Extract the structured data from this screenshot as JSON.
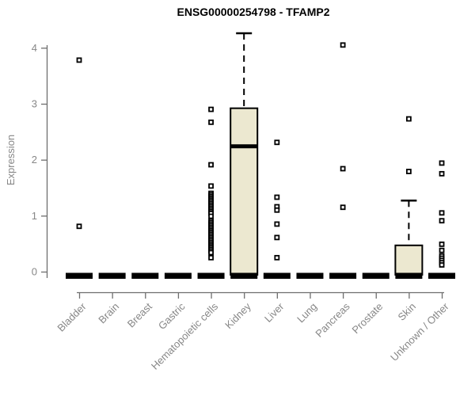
{
  "chart_data": {
    "type": "box",
    "title": "ENSG00000254798 - TFAMP2",
    "ylabel": "Expression",
    "xlabel": "",
    "ylim": [
      0,
      4.3
    ],
    "yticks": [
      0,
      1,
      2,
      3,
      4
    ],
    "grid": false,
    "legend": null,
    "categories": [
      "Bladder",
      "Brain",
      "Breast",
      "Gastric",
      "Hematopoietic cells",
      "Kidney",
      "Liver",
      "Lung",
      "Pancreas",
      "Prostate",
      "Skin",
      "Unknown / Other"
    ],
    "boxes": [
      {
        "category": "Bladder",
        "q1": 0,
        "median": 0,
        "q3": 0,
        "whisker_low": 0,
        "whisker_high": 0,
        "outliers": [
          3.78,
          0.81
        ]
      },
      {
        "category": "Brain",
        "q1": 0,
        "median": 0,
        "q3": 0,
        "whisker_low": 0,
        "whisker_high": 0,
        "outliers": []
      },
      {
        "category": "Breast",
        "q1": 0,
        "median": 0,
        "q3": 0,
        "whisker_low": 0,
        "whisker_high": 0,
        "outliers": []
      },
      {
        "category": "Gastric",
        "q1": 0,
        "median": 0,
        "q3": 0,
        "whisker_low": 0,
        "whisker_high": 0,
        "outliers": []
      },
      {
        "category": "Hematopoietic cells",
        "q1": 0,
        "median": 0,
        "q3": 0,
        "whisker_low": 0,
        "whisker_high": 0,
        "outliers": [
          2.9,
          2.67,
          1.91,
          1.53,
          1.4,
          1.37,
          1.34,
          1.31,
          1.28,
          1.25,
          1.22,
          1.19,
          1.16,
          1.13,
          1.1,
          1.07,
          1.04,
          0.99,
          0.91,
          0.88,
          0.85,
          0.82,
          0.79,
          0.76,
          0.73,
          0.7,
          0.67,
          0.64,
          0.61,
          0.58,
          0.55,
          0.52,
          0.49,
          0.46,
          0.43,
          0.4,
          0.37,
          0.34,
          0.25
        ]
      },
      {
        "category": "Kidney",
        "q1": 0,
        "median": 2.24,
        "q3": 2.92,
        "whisker_low": 0,
        "whisker_high": 4.26,
        "outliers": []
      },
      {
        "category": "Liver",
        "q1": 0,
        "median": 0,
        "q3": 0,
        "whisker_low": 0,
        "whisker_high": 0,
        "outliers": [
          2.31,
          1.33,
          1.16,
          1.1,
          0.85,
          0.61,
          0.25
        ]
      },
      {
        "category": "Lung",
        "q1": 0,
        "median": 0,
        "q3": 0,
        "whisker_low": 0,
        "whisker_high": 0,
        "outliers": []
      },
      {
        "category": "Pancreas",
        "q1": 0,
        "median": 0,
        "q3": 0,
        "whisker_low": 0,
        "whisker_high": 0,
        "outliers": [
          4.05,
          1.84,
          1.15
        ]
      },
      {
        "category": "Prostate",
        "q1": 0,
        "median": 0,
        "q3": 0,
        "whisker_low": 0,
        "whisker_high": 0,
        "outliers": []
      },
      {
        "category": "Skin",
        "q1": 0,
        "median": 0,
        "q3": 0.47,
        "whisker_low": 0,
        "whisker_high": 1.27,
        "outliers": [
          2.73,
          1.79
        ]
      },
      {
        "category": "Unknown / Other",
        "q1": 0,
        "median": 0,
        "q3": 0,
        "whisker_low": 0,
        "whisker_high": 0,
        "outliers": [
          1.94,
          1.75,
          1.05,
          0.91,
          0.49,
          0.38,
          0.28,
          0.24,
          0.2,
          0.16,
          0.12
        ]
      }
    ],
    "colors": {
      "box_fill": "#ece8d0",
      "box_border": "#000000",
      "median": "#000000",
      "outlier": "#000000",
      "axis_line": "#6e6e6e",
      "axis_text": "#878787",
      "title": "#000000",
      "background": "#ffffff"
    }
  }
}
